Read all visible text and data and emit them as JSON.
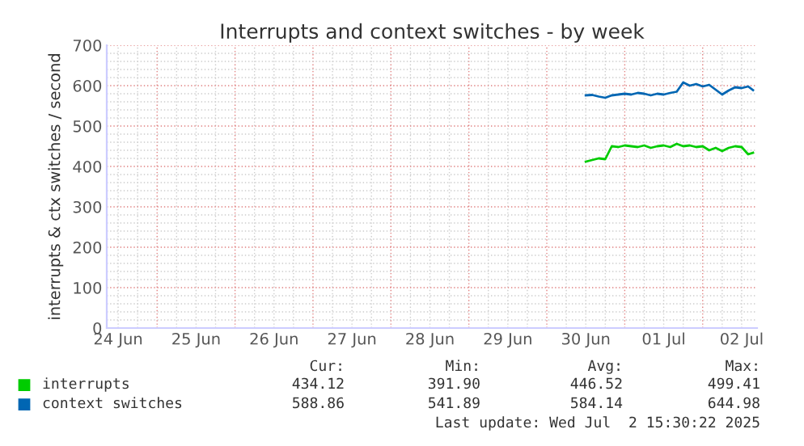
{
  "chart_data": {
    "type": "line",
    "title": "Interrupts and context switches - by week",
    "ylabel": "interrupts & ctx switches / second",
    "x": [
      "2025-06-30T12:00",
      "2025-06-30T14:00",
      "2025-06-30T16:00",
      "2025-06-30T18:00",
      "2025-06-30T20:00",
      "2025-06-30T22:00",
      "2025-07-01T00:00",
      "2025-07-01T02:00",
      "2025-07-01T04:00",
      "2025-07-01T06:00",
      "2025-07-01T08:00",
      "2025-07-01T10:00",
      "2025-07-01T12:00",
      "2025-07-01T14:00",
      "2025-07-01T16:00",
      "2025-07-01T18:00",
      "2025-07-01T20:00",
      "2025-07-01T22:00",
      "2025-07-02T00:00",
      "2025-07-02T02:00",
      "2025-07-02T04:00",
      "2025-07-02T06:00",
      "2025-07-02T08:00",
      "2025-07-02T10:00",
      "2025-07-02T12:00",
      "2025-07-02T14:00",
      "2025-07-02T15:30"
    ],
    "series": [
      {
        "name": "interrupts",
        "color": "#00cc00",
        "values": [
          412,
          416,
          420,
          418,
          450,
          448,
          452,
          450,
          448,
          452,
          446,
          450,
          452,
          448,
          456,
          450,
          452,
          448,
          450,
          440,
          446,
          438,
          446,
          450,
          448,
          430,
          434
        ]
      },
      {
        "name": "context switches",
        "color": "#0066b3",
        "values": [
          576,
          577,
          573,
          570,
          576,
          578,
          580,
          578,
          582,
          580,
          576,
          580,
          578,
          582,
          585,
          608,
          600,
          604,
          598,
          602,
          590,
          578,
          588,
          596,
          594,
          598,
          589
        ]
      }
    ],
    "xlim": [
      "2025-06-24T08:30",
      "2025-07-02T16:45"
    ],
    "xticks": [
      {
        "value": "2025-06-24T12:00",
        "label": "24 Jun"
      },
      {
        "value": "2025-06-25T12:00",
        "label": "25 Jun"
      },
      {
        "value": "2025-06-26T12:00",
        "label": "26 Jun"
      },
      {
        "value": "2025-06-27T12:00",
        "label": "27 Jun"
      },
      {
        "value": "2025-06-28T12:00",
        "label": "28 Jun"
      },
      {
        "value": "2025-06-29T12:00",
        "label": "29 Jun"
      },
      {
        "value": "2025-06-30T12:00",
        "label": "30 Jun"
      },
      {
        "value": "2025-07-01T12:00",
        "label": "01 Jul"
      },
      {
        "value": "2025-07-02T12:00",
        "label": "02 Jul"
      }
    ],
    "ylim": [
      0,
      700
    ],
    "yticks": [
      0,
      100,
      200,
      300,
      400,
      500,
      600,
      700
    ],
    "grid": true,
    "legend": "bottom",
    "marker": "none",
    "line_style": "solid",
    "annotations": [
      "Cur:",
      "Min:",
      "Avg:",
      "Max:",
      "434.12",
      "391.90",
      "446.52",
      "499.41",
      "588.86",
      "541.89",
      "584.14",
      "644.98",
      "Last update: Wed Jul  2 15:30:22 2025"
    ]
  }
}
